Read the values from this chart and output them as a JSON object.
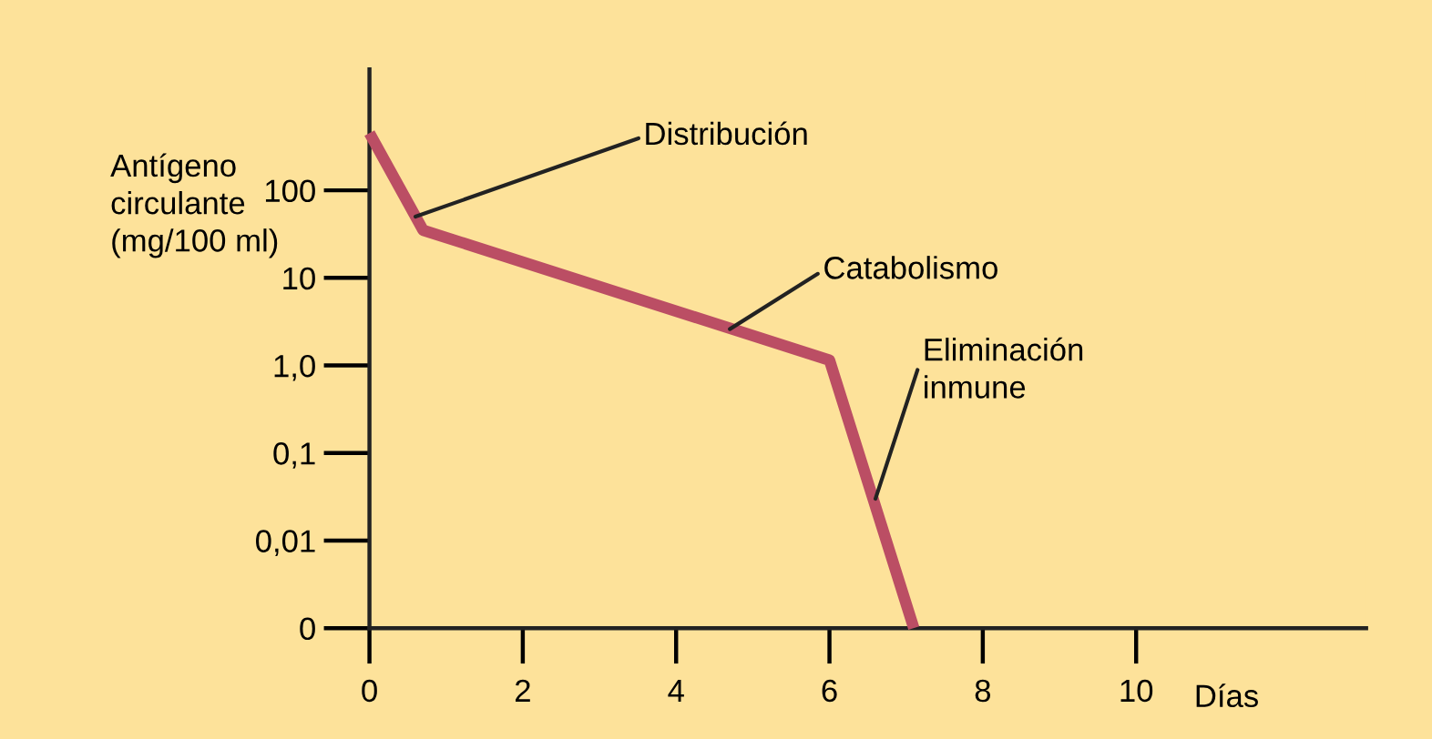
{
  "chart_data": {
    "type": "line",
    "ylabel": "Antígeno\ncirculante\n(mg/100 ml)",
    "xlabel": "Días",
    "x": [
      0,
      0.7,
      6.0,
      7.1
    ],
    "series": [
      {
        "color": "#bb4e64",
        "values": [
          450,
          35,
          1.15,
          0.001
        ]
      }
    ],
    "log": "y",
    "xlim": [
      0,
      13
    ],
    "xticks": [
      0,
      2,
      4,
      6,
      8,
      10
    ],
    "ylim": [
      0.001,
      2400
    ],
    "yticks": [
      {
        "value": 0.001,
        "label": "0"
      },
      {
        "value": 0.01,
        "label": "0,01"
      },
      {
        "value": 0.1,
        "label": "0,1"
      },
      {
        "value": 1,
        "label": "1,0"
      },
      10,
      100
    ],
    "annotations": [
      {
        "text": "Distribución",
        "x": 0.6,
        "y": 50
      },
      {
        "text": "Catabolismo",
        "x": 4.7,
        "y": 2.6
      },
      {
        "text": "Eliminación\ninmune",
        "x": 6.6,
        "y": 0.03
      }
    ],
    "grid": false,
    "legend": false,
    "marker": "none",
    "line_style": "solid"
  }
}
